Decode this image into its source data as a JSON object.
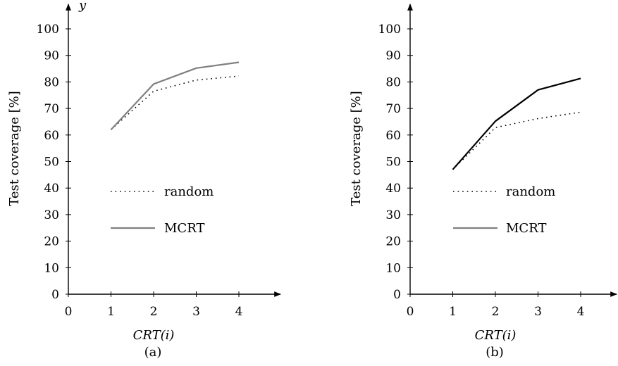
{
  "chart_data": [
    {
      "type": "line",
      "panel_label": "(a)",
      "xlabel": "CRT(i)",
      "ylabel": "Test coverage [%]",
      "top_label": "y",
      "xlim": [
        0,
        5
      ],
      "ylim": [
        0,
        105
      ],
      "x_ticks": [
        0,
        1,
        2,
        3,
        4
      ],
      "y_ticks": [
        0,
        10,
        20,
        30,
        40,
        50,
        60,
        70,
        80,
        90,
        100
      ],
      "legend_position": "center",
      "grid": false,
      "series": [
        {
          "name": "random",
          "style": "dotted",
          "color": "#000000",
          "x": [
            1,
            2,
            3,
            4
          ],
          "y": [
            62,
            76.5,
            80.7,
            82.2
          ]
        },
        {
          "name": "MCRT",
          "style": "solid",
          "color": "#808080",
          "x": [
            1,
            2,
            3,
            4
          ],
          "y": [
            62,
            79.2,
            85.2,
            87.4
          ]
        }
      ]
    },
    {
      "type": "line",
      "panel_label": "(b)",
      "xlabel": "CRT(i)",
      "ylabel": "Test coverage [%]",
      "xlim": [
        0,
        5
      ],
      "ylim": [
        0,
        105
      ],
      "x_ticks": [
        0,
        1,
        2,
        3,
        4
      ],
      "y_ticks": [
        0,
        10,
        20,
        30,
        40,
        50,
        60,
        70,
        80,
        90,
        100
      ],
      "legend_position": "center",
      "grid": false,
      "series": [
        {
          "name": "random",
          "style": "dotted",
          "color": "#000000",
          "x": [
            1,
            2,
            3,
            4
          ],
          "y": [
            47,
            62.8,
            66.2,
            68.6
          ]
        },
        {
          "name": "MCRT",
          "style": "solid",
          "color": "#000000",
          "legend_color": "#808080",
          "x": [
            1,
            2,
            3,
            4
          ],
          "y": [
            47,
            65.2,
            77,
            81.3
          ]
        }
      ]
    }
  ]
}
